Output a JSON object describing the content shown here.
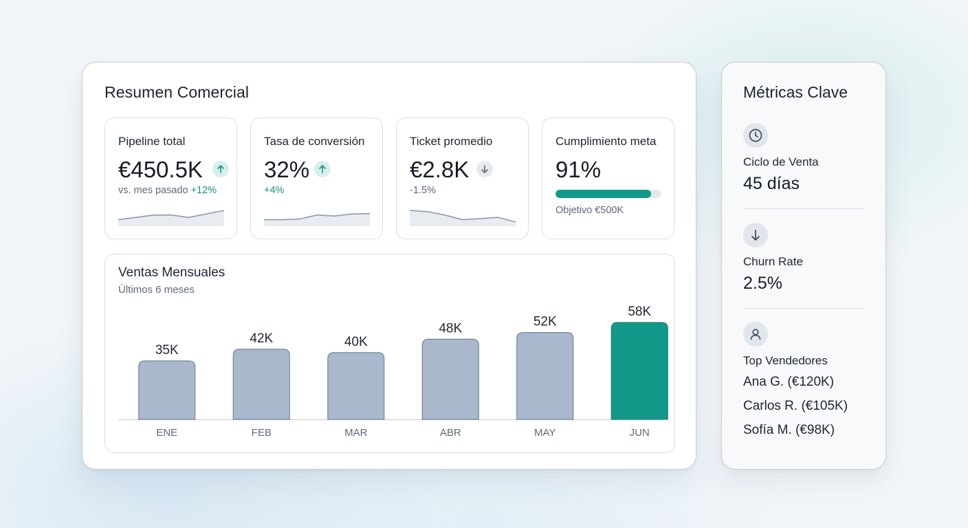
{
  "main": {
    "title": "Resumen Comercial",
    "kpis": [
      {
        "label": "Pipeline total",
        "value": "€450.5K",
        "trend": "up",
        "trend_icon": "arrow-up-icon",
        "sub_prefix": "vs. mes pasado",
        "sub_delta": "+12%",
        "sparkline": [
          4,
          5,
          6,
          6,
          5,
          6.5,
          8
        ]
      },
      {
        "label": "Tasa de conversión",
        "value": "32%",
        "trend": "up",
        "trend_icon": "arrow-up-icon",
        "sub_delta": "+4%",
        "sparkline": [
          4,
          4,
          4.3,
          6,
          5.6,
          6.5,
          6.6
        ]
      },
      {
        "label": "Ticket promedio",
        "value": "€2.8K",
        "trend": "down",
        "trend_icon": "arrow-down-icon",
        "sub_delta": "-1.5%",
        "sparkline": [
          8,
          7.5,
          6,
          4,
          4.5,
          5,
          3
        ]
      },
      {
        "label": "Cumplimiento meta",
        "value": "91%",
        "progress": 0.9,
        "note": "Objetivo €500K"
      }
    ],
    "chart_panel": {
      "title": "Ventas Mensuales",
      "subtitle": "Últimos 6 meses"
    }
  },
  "chart_data": {
    "type": "bar",
    "title": "Ventas Mensuales",
    "subtitle": "Últimos 6 meses",
    "categories": [
      "ENE",
      "FEB",
      "MAR",
      "ABR",
      "MAY",
      "JUN"
    ],
    "values": [
      35,
      42,
      40,
      48,
      52,
      58
    ],
    "value_labels": [
      "35K",
      "42K",
      "40K",
      "48K",
      "52K",
      "58K"
    ],
    "units": "K",
    "highlight_index": 5,
    "colors": {
      "bar": "#a9b8cc",
      "bar_stroke": "#6b7d94",
      "highlight": "#13998a",
      "highlight_stroke": "#0f7d70"
    },
    "grid": false,
    "legend": "none"
  },
  "side": {
    "title": "Métricas Clave",
    "metrics": [
      {
        "icon": "clock-icon",
        "label": "Ciclo de Venta",
        "value": "45 días"
      },
      {
        "icon": "arrow-down-icon",
        "label": "Churn Rate",
        "value": "2.5%"
      },
      {
        "icon": "user-icon",
        "label": "Top Vendedores"
      }
    ],
    "top_sellers": [
      "Ana G. (€120K)",
      "Carlos R. (€105K)",
      "Sofía M. (€98K)"
    ]
  },
  "colors": {
    "accent": "#13998a",
    "positive": "#17947f",
    "muted_text": "#5d6876",
    "sparkline_stroke": "#8c9bb0",
    "sparkline_fill": "#e8ecf1"
  }
}
